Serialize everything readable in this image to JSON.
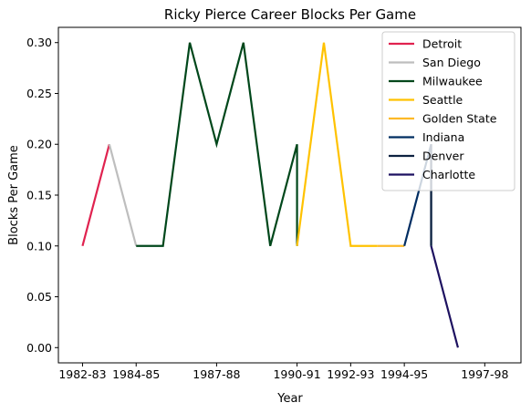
{
  "chart_data": {
    "type": "line",
    "title": "Ricky Pierce Career Blocks Per Game",
    "xlabel": "Year",
    "ylabel": "Blocks Per Game",
    "xticks": [
      "1982-83",
      "1984-85",
      "1987-88",
      "1990-91",
      "1992-93",
      "1994-95",
      "1997-98"
    ],
    "yticks": [
      "0.00",
      "0.05",
      "0.10",
      "0.15",
      "0.20",
      "0.25",
      "0.30"
    ],
    "ylim": [
      -0.015,
      0.315
    ],
    "grid": false,
    "legend_position": "top-right",
    "series": [
      {
        "name": "Detroit",
        "color": "#e0224f",
        "points": [
          [
            "1982-83",
            0.1
          ],
          [
            "1983-84",
            0.2
          ]
        ]
      },
      {
        "name": "San Diego",
        "color": "#bebebe",
        "points": [
          [
            "1983-84",
            0.2
          ],
          [
            "1984-85",
            0.1
          ]
        ]
      },
      {
        "name": "Milwaukee",
        "color": "#00471b",
        "points": [
          [
            "1984-85",
            0.1
          ],
          [
            "1985-86",
            0.1
          ],
          [
            "1986-87",
            0.3
          ],
          [
            "1987-88",
            0.2
          ],
          [
            "1988-89",
            0.3
          ],
          [
            "1989-90",
            0.1
          ],
          [
            "1990-91",
            0.2
          ],
          [
            "1990-91",
            0.1
          ]
        ]
      },
      {
        "name": "Seattle",
        "color": "#ffc200",
        "points": [
          [
            "1990-91",
            0.1
          ],
          [
            "1991-92",
            0.3
          ],
          [
            "1992-93",
            0.1
          ],
          [
            "1993-94",
            0.1
          ]
        ]
      },
      {
        "name": "Golden State",
        "color": "#fdb927",
        "points": [
          [
            "1993-94",
            0.1
          ],
          [
            "1994-95",
            0.1
          ]
        ]
      },
      {
        "name": "Indiana",
        "color": "#002d62",
        "points": [
          [
            "1994-95",
            0.1
          ],
          [
            "1995-96",
            0.2
          ],
          [
            "1995-96",
            0.1
          ]
        ]
      },
      {
        "name": "Denver",
        "color": "#0d2240",
        "points": [
          [
            "1995-96",
            0.2
          ],
          [
            "1995-96",
            0.1
          ]
        ]
      },
      {
        "name": "Charlotte",
        "color": "#1d1160",
        "points": [
          [
            "1995-96",
            0.1
          ],
          [
            "1996-97",
            0.0
          ]
        ]
      }
    ]
  }
}
